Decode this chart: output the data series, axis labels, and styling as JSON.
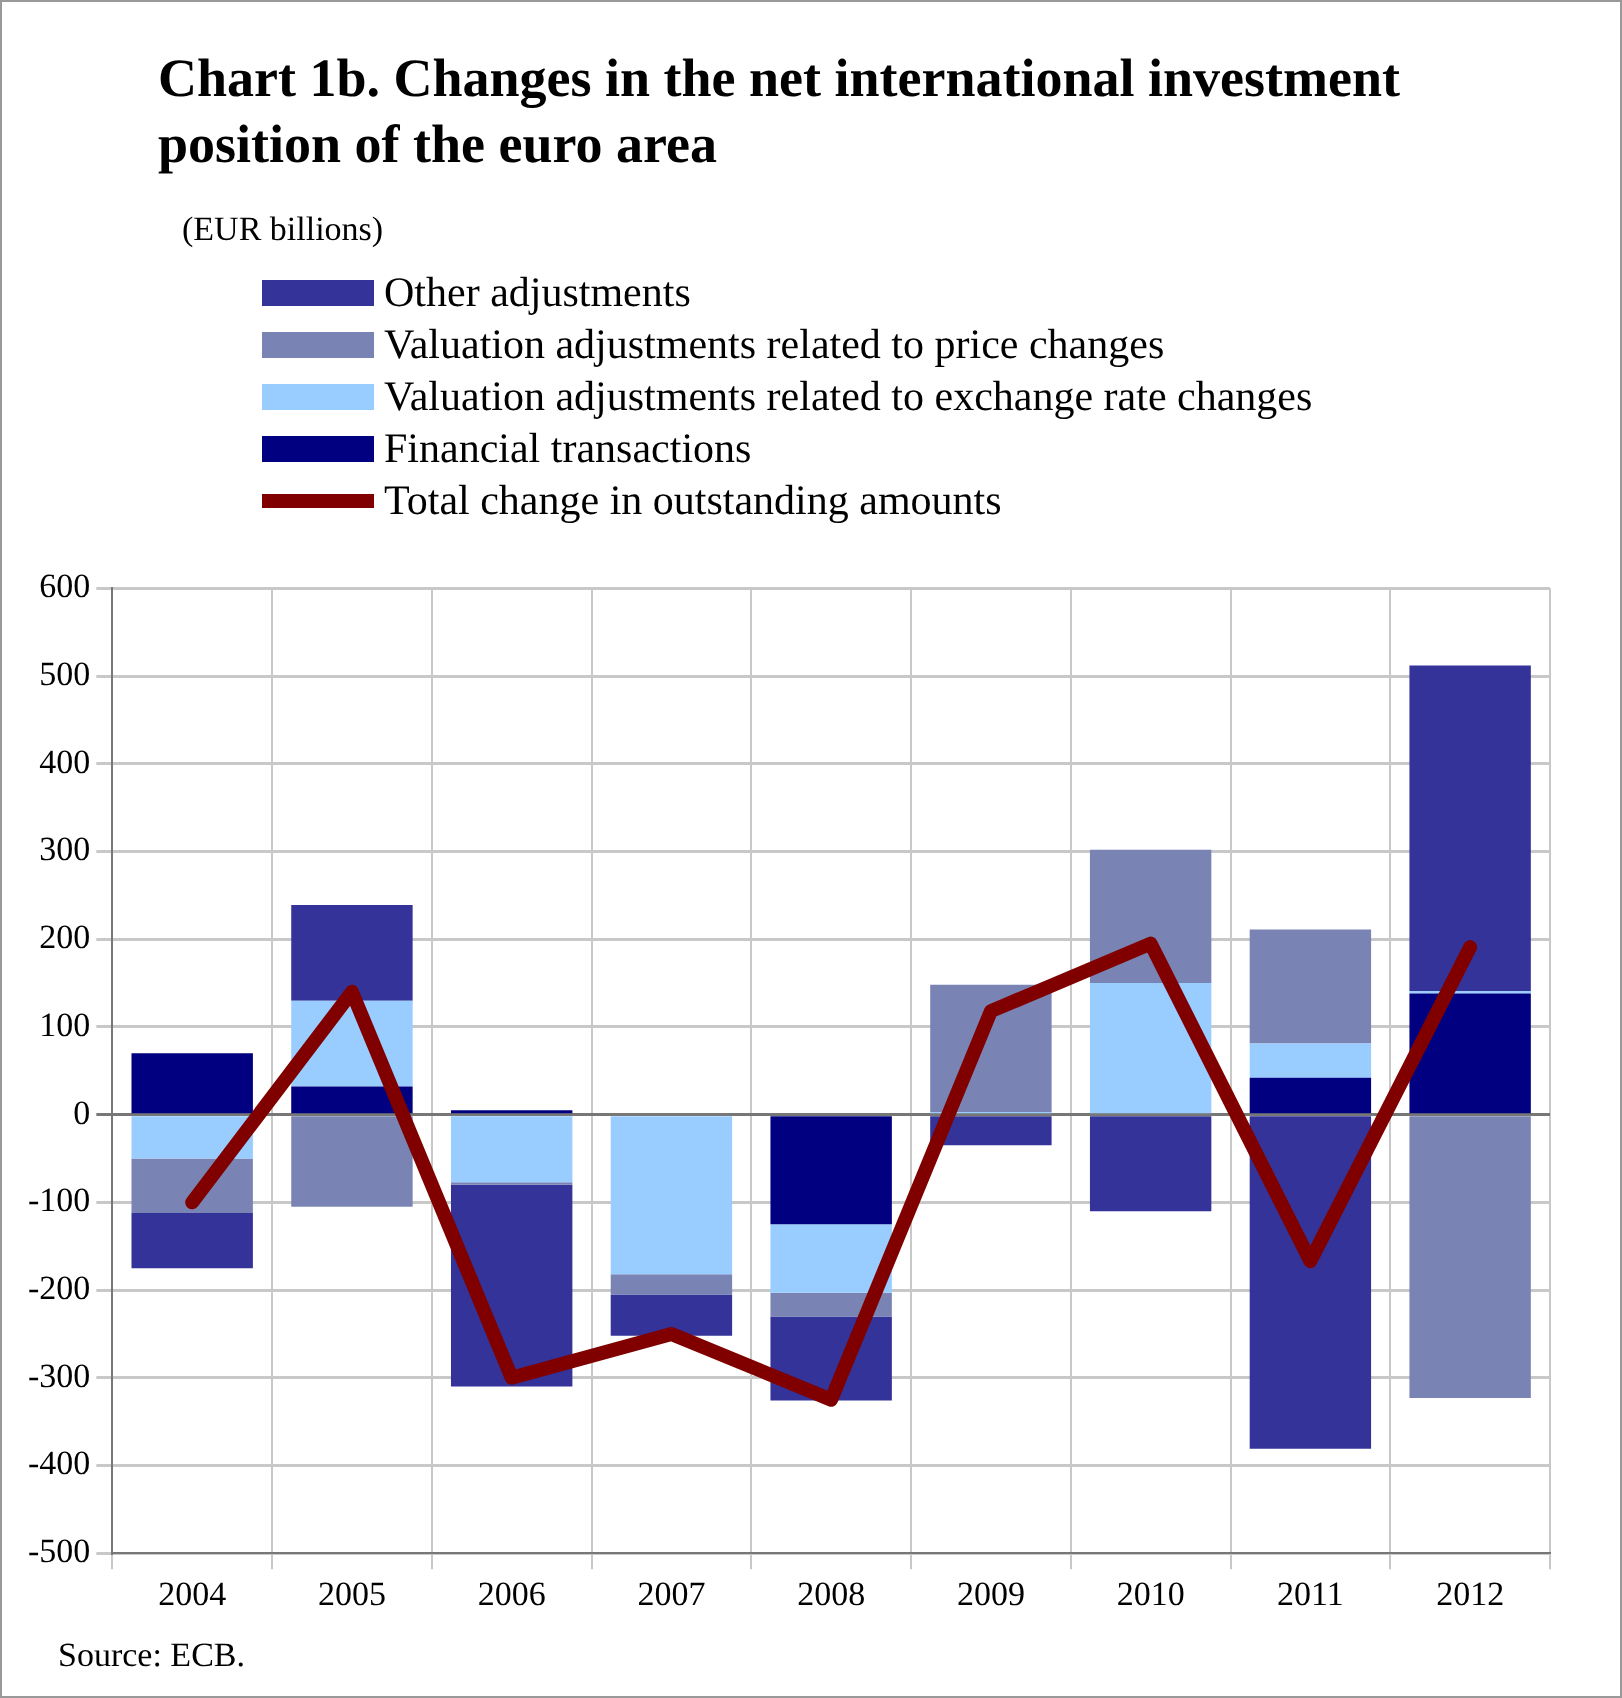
{
  "chart_data": {
    "type": "bar",
    "stacked": true,
    "title": "Chart 1b. Changes in the net international investment position of the euro area",
    "categories": [
      "2004",
      "2005",
      "2006",
      "2007",
      "2008",
      "2009",
      "2010",
      "2011",
      "2012"
    ],
    "series": [
      {
        "name": "Financial transactions",
        "color": "#000080",
        "values": [
          70,
          32,
          5,
          0,
          -125,
          0,
          0,
          42,
          138
        ]
      },
      {
        "name": "Valuation adjustments related to exchange rate changes",
        "color": "#99ccff",
        "values": [
          -50,
          98,
          -77,
          -182,
          -78,
          3,
          150,
          39,
          3
        ]
      },
      {
        "name": "Valuation adjustments related to price changes",
        "color": "#7a84b4",
        "values": [
          -62,
          -105,
          -3,
          -23,
          -27,
          145,
          152,
          130,
          -323
        ]
      },
      {
        "name": "Other adjustments",
        "color": "#333399",
        "values": [
          -63,
          109,
          -230,
          -47,
          -96,
          -35,
          -110,
          -381,
          371
        ]
      },
      {
        "name": "Total change in outstanding amounts",
        "type": "line",
        "color": "#800000",
        "values": [
          -100,
          140,
          -300,
          -250,
          -325,
          118,
          195,
          -167,
          191
        ]
      }
    ],
    "ylim": [
      -500,
      600
    ],
    "yticks": [
      -500,
      -400,
      -300,
      -200,
      -100,
      0,
      100,
      200,
      300,
      400,
      500,
      600
    ],
    "grid": true,
    "legend": "top left",
    "annotations": [
      "(EUR billions)",
      "Source: ECB."
    ]
  }
}
